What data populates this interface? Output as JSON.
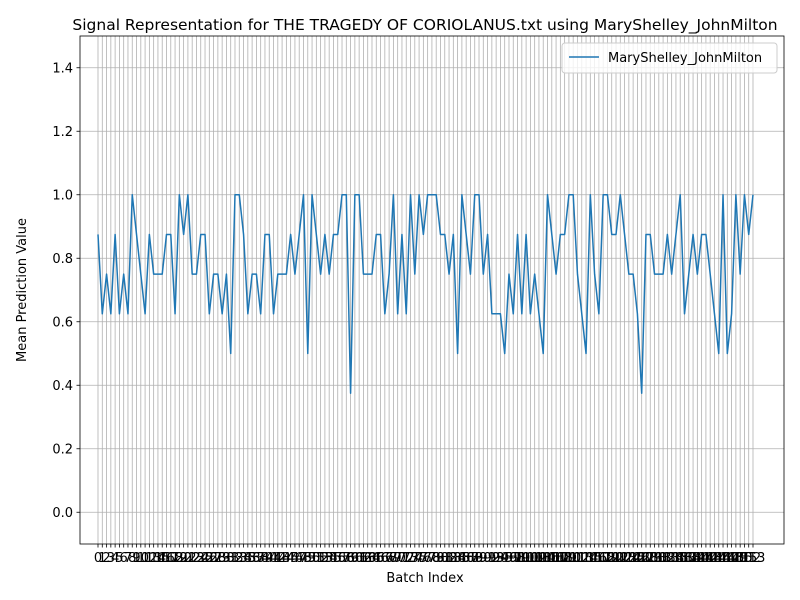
{
  "chart_data": {
    "type": "line",
    "title": "Signal Representation for THE TRAGEDY OF CORIOLANUS.txt using MaryShelley_JohnMilton",
    "xlabel": "Batch Index",
    "ylabel": "Mean Prediction Value",
    "ylim": [
      -0.1,
      1.5
    ],
    "yticks": [
      "0.0",
      "0.2",
      "0.4",
      "0.6",
      "0.8",
      "1.0",
      "1.2",
      "1.4"
    ],
    "grid": true,
    "legend": "top-right",
    "series": [
      {
        "name": "MaryShelley_JohnMilton",
        "color": "#1f77b4",
        "values": [
          0.875,
          0.625,
          0.75,
          0.625,
          0.875,
          0.625,
          0.75,
          0.625,
          1.0,
          0.875,
          0.75,
          0.625,
          0.875,
          0.75,
          0.75,
          0.75,
          0.875,
          0.875,
          0.625,
          1.0,
          0.875,
          1.0,
          0.75,
          0.75,
          0.875,
          0.875,
          0.625,
          0.75,
          0.75,
          0.625,
          0.75,
          0.5,
          1.0,
          1.0,
          0.875,
          0.625,
          0.75,
          0.75,
          0.625,
          0.875,
          0.875,
          0.625,
          0.75,
          0.75,
          0.75,
          0.875,
          0.75,
          0.875,
          1.0,
          0.5,
          1.0,
          0.875,
          0.75,
          0.875,
          0.75,
          0.875,
          0.875,
          1.0,
          1.0,
          0.375,
          1.0,
          1.0,
          0.75,
          0.75,
          0.75,
          0.875,
          0.875,
          0.625,
          0.75,
          1.0,
          0.625,
          0.875,
          0.625,
          1.0,
          0.75,
          1.0,
          0.875,
          1.0,
          1.0,
          1.0,
          0.875,
          0.875,
          0.75,
          0.875,
          0.5,
          1.0,
          0.875,
          0.75,
          1.0,
          1.0,
          0.75,
          0.875,
          0.625,
          0.625,
          0.625,
          0.5,
          0.75,
          0.625,
          0.875,
          0.625,
          0.875,
          0.625,
          0.75,
          0.625,
          0.5,
          1.0,
          0.875,
          0.75,
          0.875,
          0.875,
          1.0,
          1.0,
          0.75,
          0.625,
          0.5,
          1.0,
          0.75,
          0.625,
          1.0,
          1.0,
          0.875,
          0.875,
          1.0,
          0.875,
          0.75,
          0.75,
          0.625,
          0.375,
          0.875,
          0.875,
          0.75,
          0.75,
          0.75,
          0.875,
          0.75,
          0.875,
          1.0,
          0.625,
          0.75,
          0.875,
          0.75,
          0.875,
          0.875,
          0.75,
          0.625,
          0.5,
          1.0,
          0.5,
          0.625,
          1.0,
          0.75,
          1.0,
          0.875,
          1.0
        ]
      }
    ]
  }
}
